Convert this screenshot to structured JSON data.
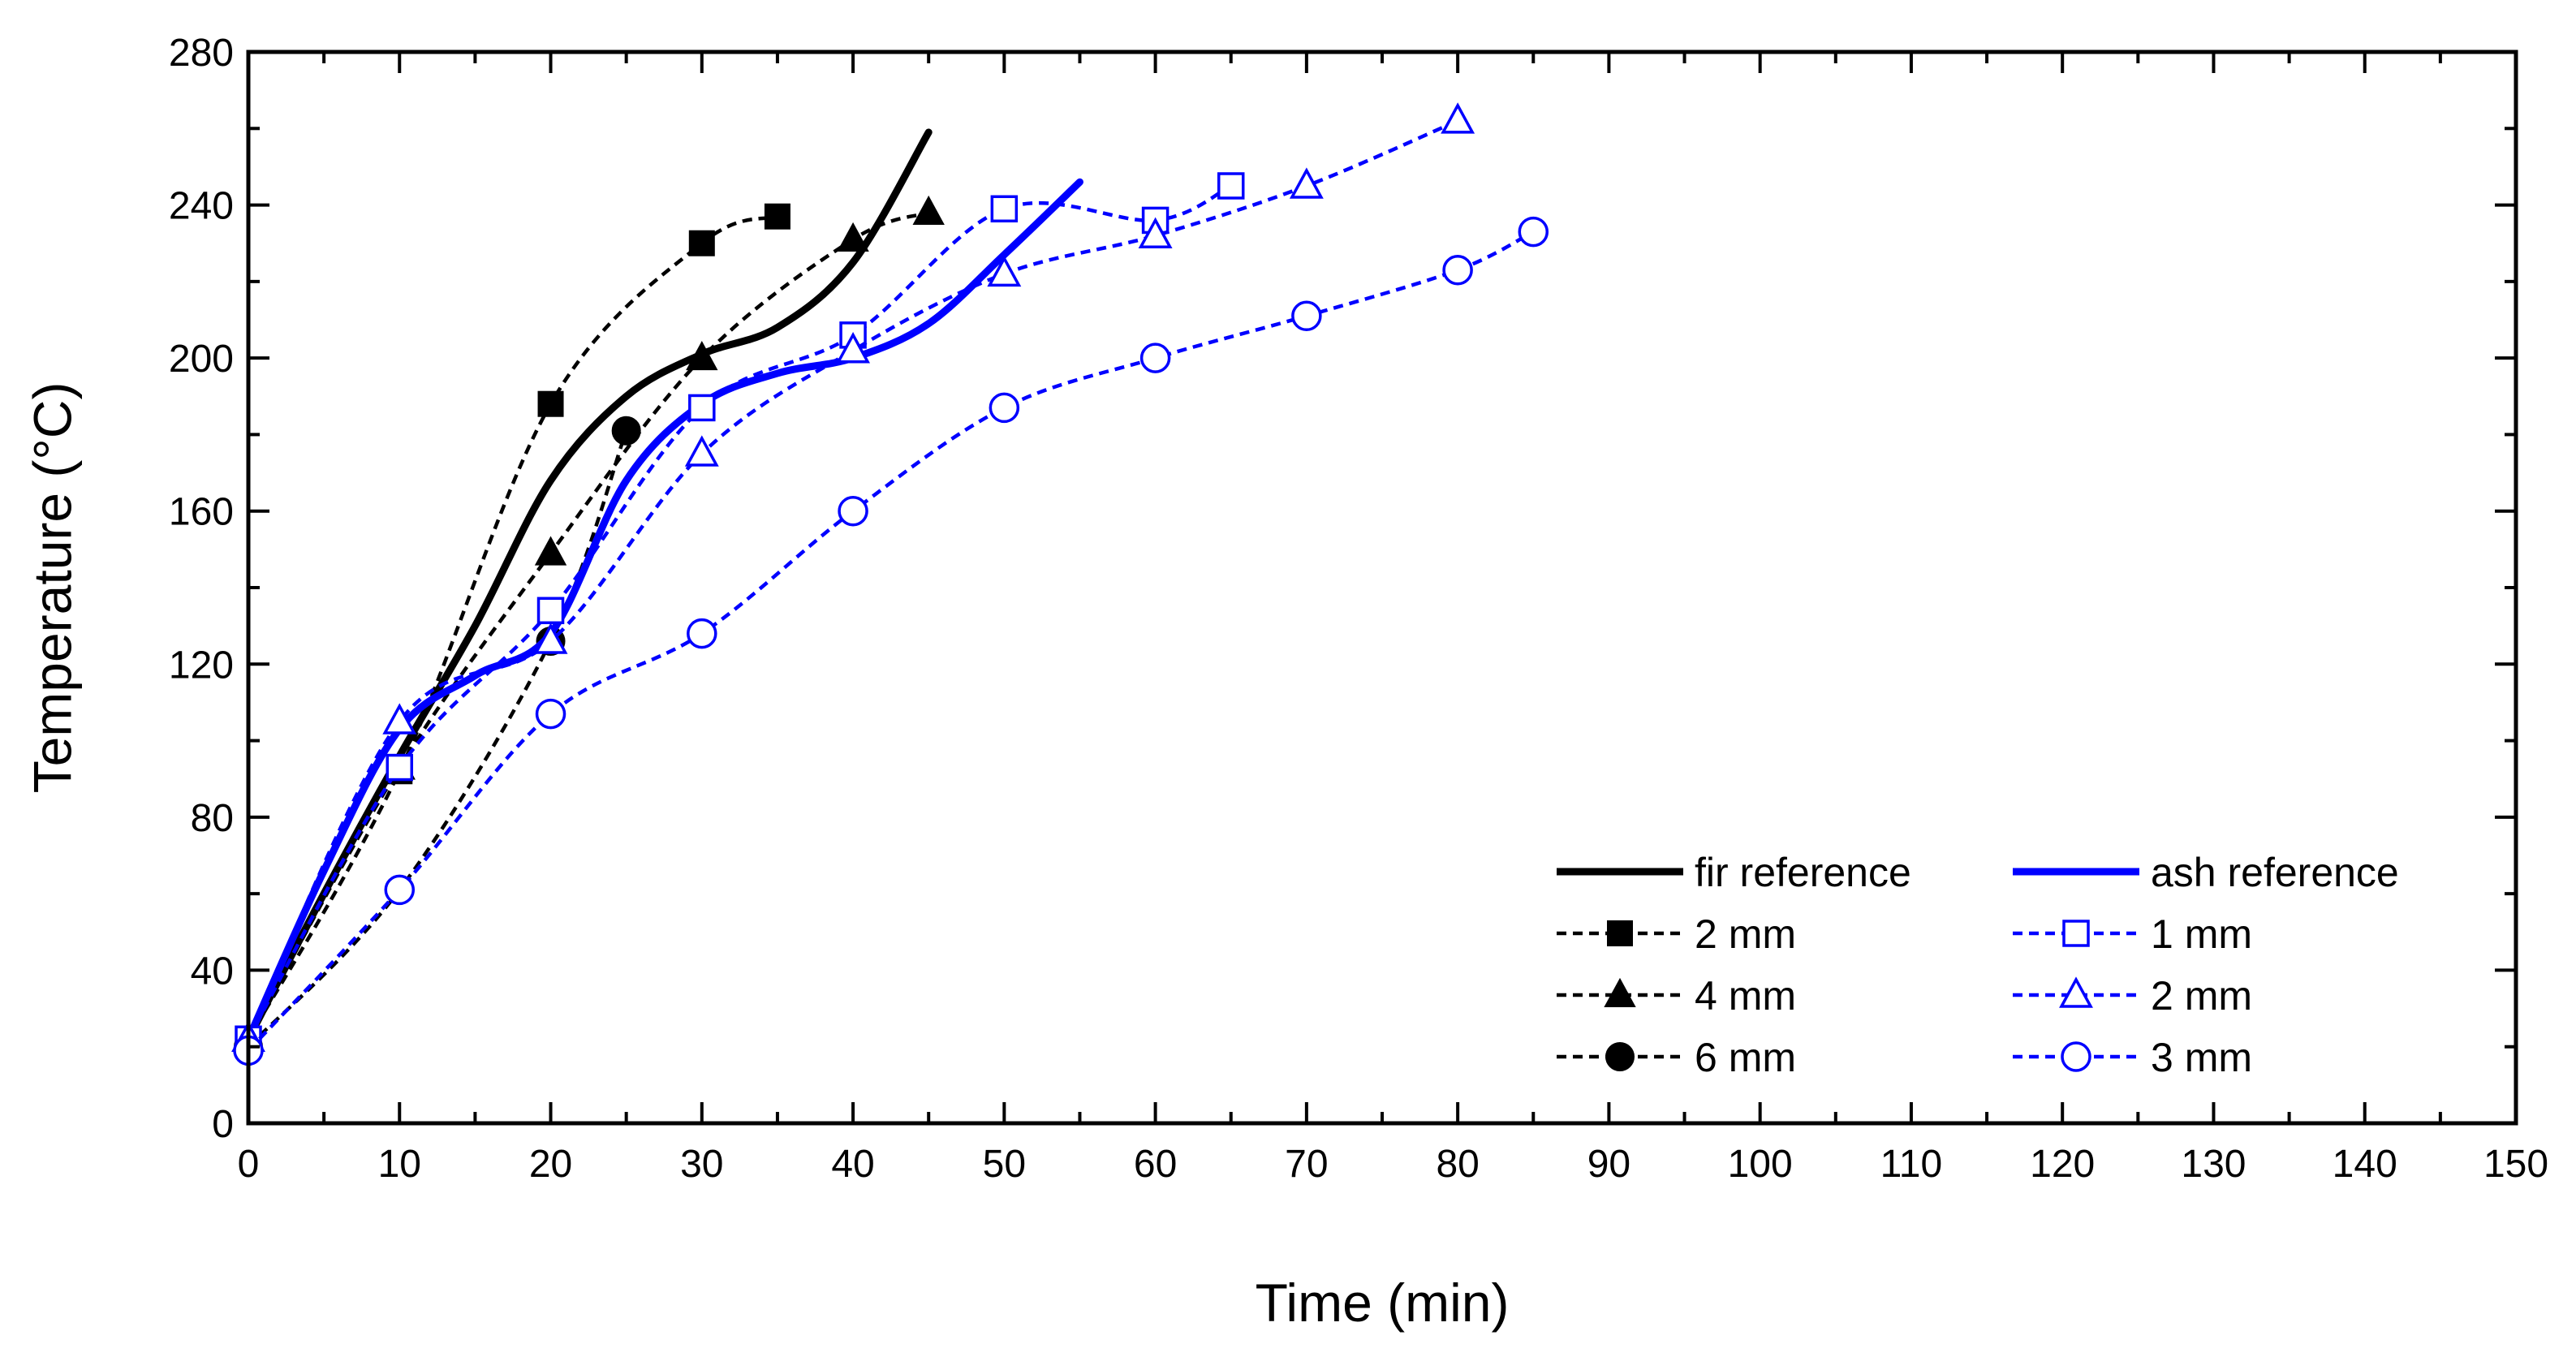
{
  "chart_data": {
    "type": "line",
    "title": "",
    "xlabel": "Time (min)",
    "ylabel": "Temperature (°C)",
    "xlim": [
      0,
      150
    ],
    "ylim": [
      0,
      280
    ],
    "xticks": [
      0,
      10,
      20,
      30,
      40,
      50,
      60,
      70,
      80,
      90,
      100,
      110,
      120,
      130,
      140,
      150
    ],
    "yticks": [
      0,
      40,
      80,
      120,
      160,
      200,
      240,
      280
    ],
    "grid": false,
    "legend_position": "bottom-right",
    "series": [
      {
        "name": "fir reference",
        "color": "#000000",
        "style": "solid",
        "marker": "none",
        "x": [
          0,
          5,
          10,
          15,
          20,
          25,
          30,
          35,
          40,
          45
        ],
        "y": [
          22,
          60,
          96,
          130,
          168,
          190,
          201,
          208,
          225,
          259
        ]
      },
      {
        "name": "2 mm",
        "color": "#000000",
        "style": "dashed",
        "marker": "square-filled",
        "x": [
          0,
          10,
          20,
          30,
          35
        ],
        "y": [
          22,
          92,
          188,
          230,
          237
        ]
      },
      {
        "name": "4 mm",
        "color": "#000000",
        "style": "dashed",
        "marker": "triangle-filled",
        "x": [
          0,
          10,
          20,
          30,
          40,
          45
        ],
        "y": [
          22,
          93,
          149,
          200,
          231,
          238
        ]
      },
      {
        "name": "6 mm",
        "color": "#000000",
        "style": "dashed",
        "marker": "circle-filled",
        "x": [
          0,
          10,
          20,
          25
        ],
        "y": [
          20,
          61,
          126,
          181
        ]
      },
      {
        "name": "ash reference",
        "color": "#0000ff",
        "style": "solid",
        "marker": "none",
        "x": [
          0,
          5,
          10,
          15,
          20,
          25,
          30,
          35,
          40,
          45,
          50,
          55
        ],
        "y": [
          22,
          66,
          103,
          117,
          128,
          168,
          188,
          196,
          200,
          209,
          227,
          246
        ]
      },
      {
        "name": "1 mm",
        "color": "#0000ff",
        "style": "dashed",
        "marker": "square-open",
        "x": [
          0,
          10,
          20,
          30,
          40,
          50,
          60,
          65
        ],
        "y": [
          22,
          93,
          134,
          187,
          206,
          239,
          236,
          245
        ]
      },
      {
        "name": "2 mm",
        "color": "#0000ff",
        "style": "dashed",
        "marker": "triangle-open",
        "x": [
          0,
          10,
          20,
          30,
          40,
          50,
          60,
          70,
          80
        ],
        "y": [
          22,
          105,
          126,
          175,
          202,
          222,
          232,
          245,
          262
        ]
      },
      {
        "name": "3 mm",
        "color": "#0000ff",
        "style": "dashed",
        "marker": "circle-open",
        "x": [
          0,
          10,
          20,
          30,
          40,
          50,
          60,
          70,
          80,
          85
        ],
        "y": [
          19,
          61,
          107,
          128,
          160,
          187,
          200,
          211,
          223,
          233
        ]
      }
    ]
  }
}
